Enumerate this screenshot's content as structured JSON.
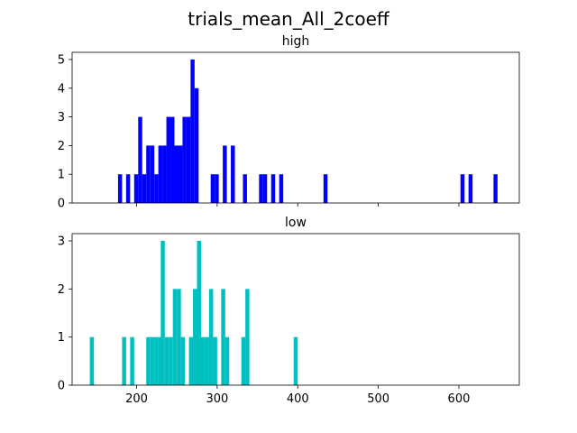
{
  "figure_title": "trials_mean_All_2coeff",
  "chart_data": [
    {
      "type": "bar",
      "title": "high",
      "color": "#0000ff",
      "xlim": [
        120,
        675
      ],
      "ylim": [
        0,
        5.25
      ],
      "xticks": [
        200,
        300,
        400,
        500,
        600
      ],
      "xtick_labels_visible": false,
      "yticks": [
        0,
        1,
        2,
        3,
        4,
        5
      ],
      "bin_width": 5,
      "bins": [
        [
          177,
          1
        ],
        [
          187,
          1
        ],
        [
          197,
          1
        ],
        [
          202,
          3
        ],
        [
          207,
          1
        ],
        [
          212,
          2
        ],
        [
          217,
          2
        ],
        [
          222,
          1
        ],
        [
          227,
          2
        ],
        [
          232,
          2
        ],
        [
          237,
          3
        ],
        [
          242,
          3
        ],
        [
          247,
          2
        ],
        [
          252,
          2
        ],
        [
          257,
          3
        ],
        [
          262,
          3
        ],
        [
          267,
          5
        ],
        [
          272,
          4
        ],
        [
          292,
          1
        ],
        [
          297,
          1
        ],
        [
          307,
          2
        ],
        [
          317,
          2
        ],
        [
          332,
          1
        ],
        [
          352,
          1
        ],
        [
          357,
          1
        ],
        [
          367,
          1
        ],
        [
          377,
          1
        ],
        [
          432,
          1
        ],
        [
          602,
          1
        ],
        [
          612,
          1
        ],
        [
          643,
          1
        ]
      ]
    },
    {
      "type": "bar",
      "title": "low",
      "color": "#00bfbf",
      "xlim": [
        120,
        675
      ],
      "ylim": [
        0,
        3.15
      ],
      "xticks": [
        200,
        300,
        400,
        500,
        600
      ],
      "xtick_labels_visible": true,
      "yticks": [
        0,
        1,
        2,
        3
      ],
      "bin_width": 5,
      "bins": [
        [
          142,
          1
        ],
        [
          182,
          1
        ],
        [
          192,
          1
        ],
        [
          212,
          1
        ],
        [
          217,
          1
        ],
        [
          222,
          1
        ],
        [
          227,
          1
        ],
        [
          230,
          3
        ],
        [
          235,
          1
        ],
        [
          240,
          1
        ],
        [
          245,
          2
        ],
        [
          250,
          2
        ],
        [
          255,
          1
        ],
        [
          265,
          1
        ],
        [
          270,
          2
        ],
        [
          275,
          3
        ],
        [
          280,
          1
        ],
        [
          285,
          1
        ],
        [
          290,
          2
        ],
        [
          295,
          1
        ],
        [
          305,
          2
        ],
        [
          310,
          1
        ],
        [
          330,
          1
        ],
        [
          335,
          2
        ],
        [
          395,
          1
        ]
      ]
    }
  ]
}
